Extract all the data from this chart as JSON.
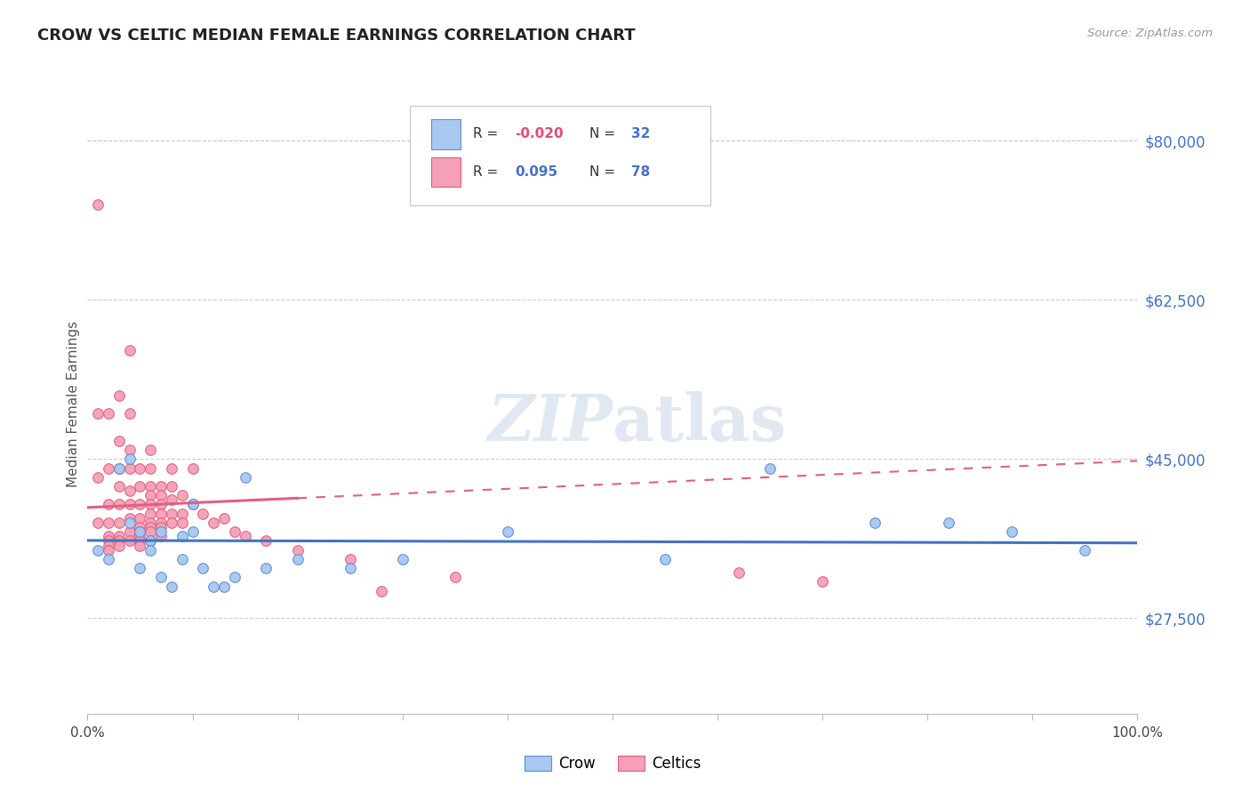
{
  "title": "CROW VS CELTIC MEDIAN FEMALE EARNINGS CORRELATION CHART",
  "source": "Source: ZipAtlas.com",
  "ylabel": "Median Female Earnings",
  "ytick_labels": [
    "$27,500",
    "$45,000",
    "$62,500",
    "$80,000"
  ],
  "ytick_values": [
    27500,
    45000,
    62500,
    80000
  ],
  "ymin": 17000,
  "ymax": 85000,
  "xmin": 0.0,
  "xmax": 1.0,
  "crow_color": "#a8c8f0",
  "celtics_color": "#f5a0b8",
  "crow_edge_color": "#5b8fd4",
  "celtics_edge_color": "#e0607a",
  "crow_line_color": "#4472c4",
  "celtics_line_color": "#e06080",
  "crow_R": -0.02,
  "crow_N": 32,
  "celtics_R": 0.095,
  "celtics_N": 78,
  "crow_x": [
    0.01,
    0.02,
    0.03,
    0.04,
    0.04,
    0.05,
    0.05,
    0.06,
    0.06,
    0.07,
    0.07,
    0.08,
    0.09,
    0.09,
    0.1,
    0.1,
    0.11,
    0.12,
    0.13,
    0.14,
    0.15,
    0.17,
    0.2,
    0.25,
    0.3,
    0.4,
    0.55,
    0.65,
    0.75,
    0.82,
    0.88,
    0.95
  ],
  "crow_y": [
    35000,
    34000,
    44000,
    45000,
    38000,
    37000,
    33000,
    36000,
    35000,
    37000,
    32000,
    31000,
    34000,
    36500,
    40000,
    37000,
    33000,
    31000,
    31000,
    32000,
    43000,
    33000,
    34000,
    33000,
    34000,
    37000,
    34000,
    44000,
    38000,
    38000,
    37000,
    35000
  ],
  "celtics_x": [
    0.01,
    0.01,
    0.01,
    0.01,
    0.02,
    0.02,
    0.02,
    0.02,
    0.02,
    0.02,
    0.02,
    0.02,
    0.03,
    0.03,
    0.03,
    0.03,
    0.03,
    0.03,
    0.03,
    0.03,
    0.03,
    0.04,
    0.04,
    0.04,
    0.04,
    0.04,
    0.04,
    0.04,
    0.04,
    0.04,
    0.05,
    0.05,
    0.05,
    0.05,
    0.05,
    0.05,
    0.05,
    0.05,
    0.05,
    0.06,
    0.06,
    0.06,
    0.06,
    0.06,
    0.06,
    0.06,
    0.06,
    0.06,
    0.06,
    0.07,
    0.07,
    0.07,
    0.07,
    0.07,
    0.07,
    0.07,
    0.08,
    0.08,
    0.08,
    0.08,
    0.08,
    0.09,
    0.09,
    0.09,
    0.1,
    0.1,
    0.11,
    0.12,
    0.13,
    0.14,
    0.15,
    0.17,
    0.2,
    0.25,
    0.28,
    0.35,
    0.62,
    0.7
  ],
  "celtics_y": [
    73000,
    50000,
    43000,
    38000,
    50000,
    44000,
    40000,
    38000,
    36500,
    36000,
    35500,
    35000,
    52000,
    47000,
    44000,
    42000,
    40000,
    38000,
    36500,
    36000,
    35500,
    57000,
    50000,
    46000,
    44000,
    41500,
    40000,
    38500,
    37000,
    36000,
    44000,
    42000,
    40000,
    38500,
    37500,
    37000,
    36500,
    36000,
    35500,
    46000,
    44000,
    42000,
    41000,
    40000,
    39000,
    38000,
    37500,
    37000,
    36000,
    42000,
    41000,
    40000,
    39000,
    38000,
    37500,
    36500,
    44000,
    42000,
    40500,
    39000,
    38000,
    41000,
    39000,
    38000,
    44000,
    40000,
    39000,
    38000,
    38500,
    37000,
    36500,
    36000,
    35000,
    34000,
    30500,
    32000,
    32500,
    31500
  ]
}
